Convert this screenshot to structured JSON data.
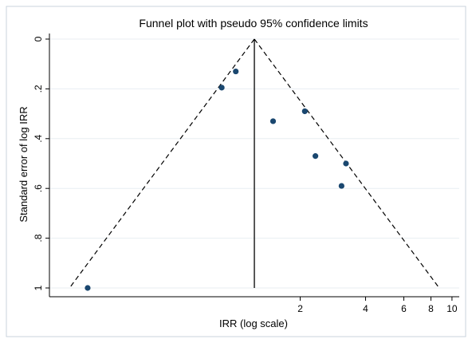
{
  "chart_data": {
    "type": "scatter",
    "title": "Funnel plot with pseudo 95% confidence limits",
    "xlabel": "IRR (log scale)",
    "ylabel": "Standard error of log IRR",
    "x_scale": "log",
    "y_reversed": true,
    "xlim": [
      0.14,
      10.8
    ],
    "ylim": [
      0,
      1
    ],
    "x_ticks": [
      {
        "value": 2,
        "label": "2"
      },
      {
        "value": 4,
        "label": "4"
      },
      {
        "value": 6,
        "label": "6"
      },
      {
        "value": 8,
        "label": "8"
      },
      {
        "value": 10,
        "label": "10"
      }
    ],
    "y_ticks": [
      {
        "value": 0,
        "label": "0"
      },
      {
        "value": 0.2,
        "label": ".2"
      },
      {
        "value": 0.4,
        "label": ".4"
      },
      {
        "value": 0.6,
        "label": ".6"
      },
      {
        "value": 0.8,
        "label": ".8"
      },
      {
        "value": 1,
        "label": "1"
      }
    ],
    "pooled_estimate": 1.23,
    "confidence_level": 0.95,
    "points": [
      {
        "x": 1.01,
        "y": 0.13
      },
      {
        "x": 0.87,
        "y": 0.195
      },
      {
        "x": 1.5,
        "y": 0.33
      },
      {
        "x": 2.1,
        "y": 0.29
      },
      {
        "x": 2.35,
        "y": 0.47
      },
      {
        "x": 3.25,
        "y": 0.5
      },
      {
        "x": 3.1,
        "y": 0.59
      },
      {
        "x": 0.21,
        "y": 1.0
      }
    ],
    "grid": true,
    "colors": {
      "marker": "#1a476f",
      "grid": "#e8eef2",
      "axis": "#000000",
      "plot_background": "#ffffff",
      "outer_background": "#ffffff"
    }
  }
}
